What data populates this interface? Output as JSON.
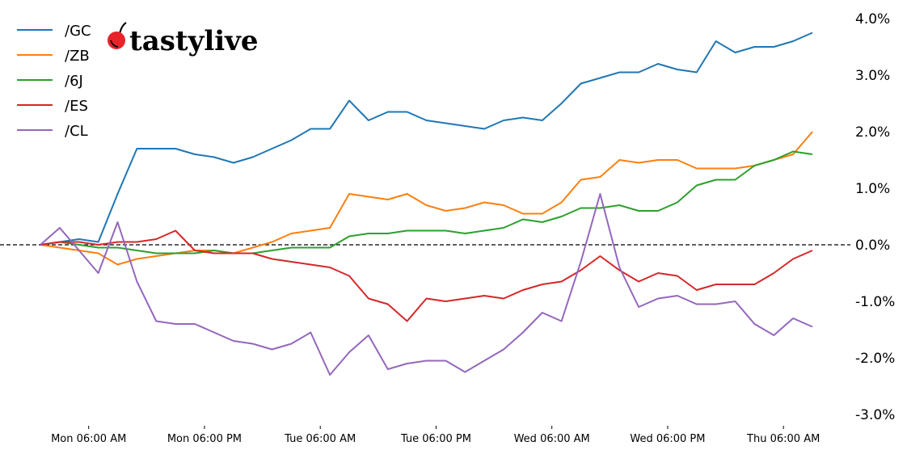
{
  "chart_data": {
    "type": "line",
    "xlabel": "",
    "ylabel": "",
    "ylim": [
      -3.0,
      4.0
    ],
    "y_unit": "%",
    "y_ticks": [
      "4.0%",
      "3.0%",
      "2.0%",
      "1.0%",
      "0.0%",
      "-1.0%",
      "-2.0%",
      "-3.0%"
    ],
    "y_tick_values": [
      4,
      3,
      2,
      1,
      0,
      -1,
      -2,
      -3
    ],
    "x_ticks": [
      "Mon 06:00 AM",
      "Mon 06:00 PM",
      "Tue 06:00 AM",
      "Tue 06:00 PM",
      "Wed 06:00 AM",
      "Wed 06:00 PM",
      "Thu 06:00 AM"
    ],
    "grid": false,
    "y_axis_position": "right",
    "reference_line": {
      "value": 0,
      "style": "dashed",
      "color": "#000000"
    },
    "legend_placement": "top-left",
    "x": [
      "Mon 01:00 AM",
      "Mon 03:00 AM",
      "Mon 05:00 AM",
      "Mon 07:00 AM",
      "Mon 09:00 AM",
      "Mon 11:00 AM",
      "Mon 01:00 PM",
      "Mon 03:00 PM",
      "Mon 05:00 PM",
      "Mon 07:00 PM",
      "Mon 09:00 PM",
      "Mon 11:00 PM",
      "Tue 01:00 AM",
      "Tue 03:00 AM",
      "Tue 05:00 AM",
      "Tue 07:00 AM",
      "Tue 09:00 AM",
      "Tue 11:00 AM",
      "Tue 01:00 PM",
      "Tue 03:00 PM",
      "Tue 05:00 PM",
      "Tue 07:00 PM",
      "Tue 09:00 PM",
      "Tue 11:00 PM",
      "Wed 01:00 AM",
      "Wed 03:00 AM",
      "Wed 05:00 AM",
      "Wed 07:00 AM",
      "Wed 09:00 AM",
      "Wed 11:00 AM",
      "Wed 01:00 PM",
      "Wed 03:00 PM",
      "Wed 05:00 PM",
      "Wed 07:00 PM",
      "Wed 09:00 PM",
      "Wed 11:00 PM",
      "Thu 01:00 AM",
      "Thu 03:00 AM",
      "Thu 05:00 AM",
      "Thu 07:00 AM",
      "Thu 09:00 AM"
    ],
    "series": [
      {
        "name": "/GC",
        "color": "#1f77b4",
        "values": [
          0,
          0.05,
          0.1,
          0.05,
          0.9,
          1.7,
          1.7,
          1.7,
          1.6,
          1.55,
          1.45,
          1.55,
          1.7,
          1.85,
          2.05,
          2.05,
          2.55,
          2.2,
          2.35,
          2.35,
          2.2,
          2.15,
          2.1,
          2.05,
          2.2,
          2.25,
          2.2,
          2.5,
          2.85,
          2.95,
          3.05,
          3.05,
          3.2,
          3.1,
          3.05,
          3.6,
          3.4,
          3.5,
          3.5,
          3.6,
          3.75
        ]
      },
      {
        "name": "/ZB",
        "color": "#ff7f0e",
        "values": [
          0,
          -0.05,
          -0.1,
          -0.15,
          -0.35,
          -0.25,
          -0.2,
          -0.15,
          -0.1,
          -0.1,
          -0.15,
          -0.05,
          0.05,
          0.2,
          0.25,
          0.3,
          0.9,
          0.85,
          0.8,
          0.9,
          0.7,
          0.6,
          0.65,
          0.75,
          0.7,
          0.55,
          0.55,
          0.75,
          1.15,
          1.2,
          1.5,
          1.45,
          1.5,
          1.5,
          1.35,
          1.35,
          1.35,
          1.4,
          1.5,
          1.6,
          2.0
        ]
      },
      {
        "name": "/6J",
        "color": "#2ca02c",
        "values": [
          0,
          0.05,
          0,
          -0.05,
          -0.05,
          -0.1,
          -0.15,
          -0.15,
          -0.15,
          -0.1,
          -0.15,
          -0.15,
          -0.1,
          -0.05,
          -0.05,
          -0.05,
          0.15,
          0.2,
          0.2,
          0.25,
          0.25,
          0.25,
          0.2,
          0.25,
          0.3,
          0.45,
          0.4,
          0.5,
          0.65,
          0.65,
          0.7,
          0.6,
          0.6,
          0.75,
          1.05,
          1.15,
          1.15,
          1.4,
          1.5,
          1.65,
          1.6
        ]
      },
      {
        "name": "/ES",
        "color": "#d62728",
        "values": [
          0,
          0.05,
          0.05,
          0,
          0.05,
          0.05,
          0.1,
          0.25,
          -0.1,
          -0.15,
          -0.15,
          -0.15,
          -0.25,
          -0.3,
          -0.35,
          -0.4,
          -0.55,
          -0.95,
          -1.05,
          -1.35,
          -0.95,
          -1.0,
          -0.95,
          -0.9,
          -0.95,
          -0.8,
          -0.7,
          -0.65,
          -0.45,
          -0.2,
          -0.45,
          -0.65,
          -0.5,
          -0.55,
          -0.8,
          -0.7,
          -0.7,
          -0.7,
          -0.5,
          -0.25,
          -0.1
        ]
      },
      {
        "name": "/CL",
        "color": "#9467bd",
        "values": [
          0,
          0.3,
          -0.1,
          -0.5,
          0.4,
          -0.65,
          -1.35,
          -1.4,
          -1.4,
          -1.55,
          -1.7,
          -1.75,
          -1.85,
          -1.75,
          -1.55,
          -2.3,
          -1.9,
          -1.6,
          -2.2,
          -2.1,
          -2.05,
          -2.05,
          -2.25,
          -2.05,
          -1.85,
          -1.55,
          -1.2,
          -1.35,
          -0.3,
          0.9,
          -0.4,
          -1.1,
          -0.95,
          -0.9,
          -1.05,
          -1.05,
          -1.0,
          -1.4,
          -1.6,
          -1.3,
          -1.45
        ]
      }
    ]
  },
  "logo": {
    "text": "tastylive",
    "icon": "cherry-icon"
  }
}
